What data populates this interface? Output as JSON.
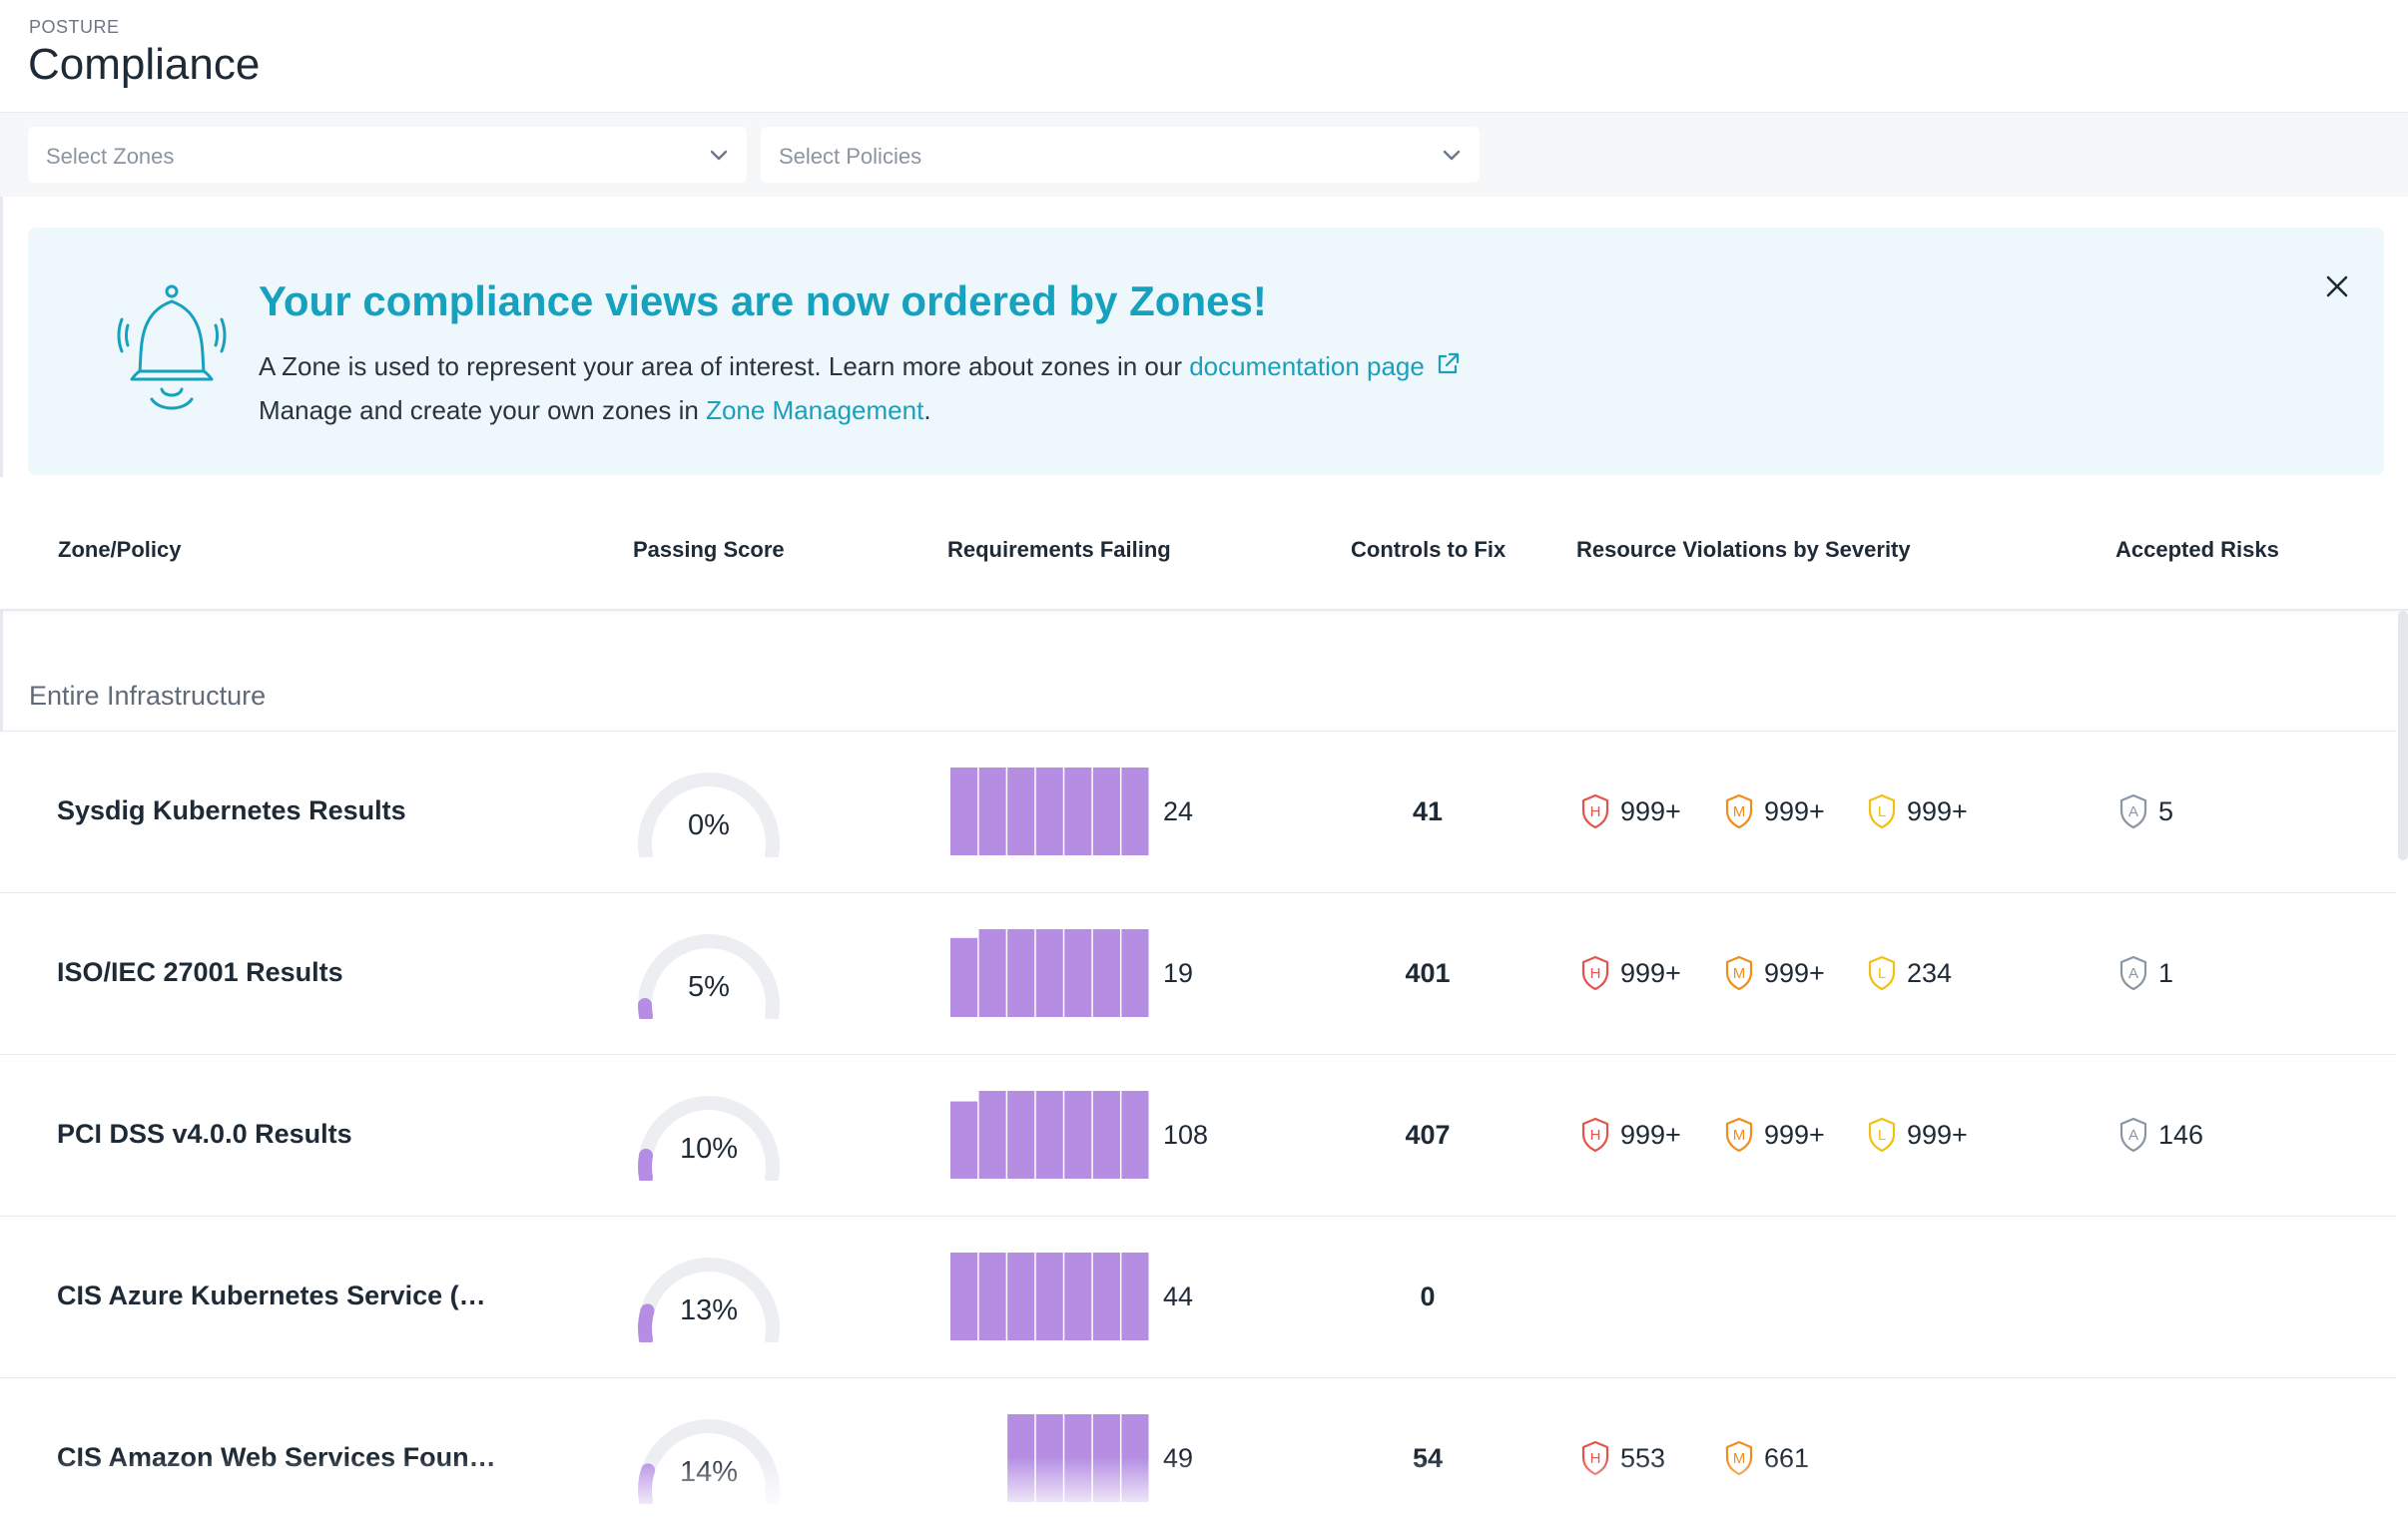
{
  "header": {
    "eyebrow": "POSTURE",
    "title": "Compliance"
  },
  "filters": {
    "zones_placeholder": "Select Zones",
    "policies_placeholder": "Select Policies"
  },
  "banner": {
    "title": "Your compliance views are now ordered by Zones!",
    "line1_text": "A Zone is used to represent your area of interest. Learn more about zones in our ",
    "line1_link": "documentation page",
    "line2_text": "Manage and create your own zones in ",
    "line2_link": "Zone Management",
    "line2_end": "."
  },
  "table": {
    "columns": [
      "Zone/Policy",
      "Passing Score",
      "Requirements Failing",
      "Controls to Fix",
      "Resource Violations by Severity",
      "Accepted Risks"
    ],
    "group": "Entire Infrastructure",
    "rows": [
      {
        "name": "Sysdig Kubernetes Results",
        "score": "0%",
        "score_fraction": 0.0,
        "req": "24",
        "ctrl": "41",
        "high": "999+",
        "medium": "999+",
        "low": "999+",
        "accepted": "5",
        "bar_heights": [
          1,
          1,
          1,
          1,
          1,
          1,
          1
        ]
      },
      {
        "name": "ISO/IEC 27001 Results",
        "score": "5%",
        "score_fraction": 0.05,
        "req": "19",
        "ctrl": "401",
        "high": "999+",
        "medium": "999+",
        "low": "234",
        "accepted": "1",
        "bar_heights": [
          0.9,
          1,
          1,
          1,
          1,
          1,
          1
        ]
      },
      {
        "name": "PCI DSS v4.0.0 Results",
        "score": "10%",
        "score_fraction": 0.1,
        "req": "108",
        "ctrl": "407",
        "high": "999+",
        "medium": "999+",
        "low": "999+",
        "accepted": "146",
        "bar_heights": [
          0.88,
          1,
          1,
          1,
          1,
          1,
          1
        ]
      },
      {
        "name": "CIS Azure Kubernetes Service (…",
        "score": "13%",
        "score_fraction": 0.13,
        "req": "44",
        "ctrl": "0",
        "high": "",
        "medium": "",
        "low": "",
        "accepted": "",
        "bar_heights": [
          1,
          1,
          1,
          1,
          1,
          1,
          1
        ]
      },
      {
        "name": "CIS Amazon Web Services Foun…",
        "score": "14%",
        "score_fraction": 0.14,
        "req": "49",
        "ctrl": "54",
        "high": "553",
        "medium": "661",
        "low": "",
        "accepted": "",
        "bar_heights": [
          0,
          0,
          1,
          1,
          1,
          1,
          1
        ]
      }
    ]
  },
  "colors": {
    "accent": "#16a2bf",
    "bar": "#b58ee3",
    "high": "#e5534b",
    "medium": "#f08c1a",
    "low": "#f2c012",
    "accepted": "#8a96a3"
  },
  "icons": {
    "bell": "bell-icon",
    "close": "close-icon",
    "external": "external-link-icon",
    "chevron": "chevron-down-icon"
  }
}
